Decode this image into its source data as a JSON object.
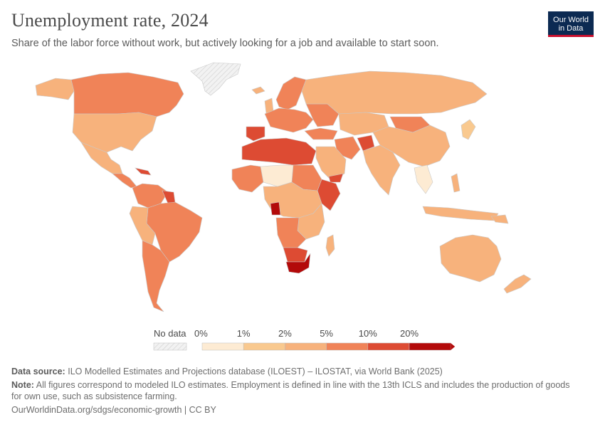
{
  "header": {
    "title": "Unemployment rate, 2024",
    "subtitle": "Share of the labor force without work, but actively looking for a job and available to start soon.",
    "logo_line1": "Our World",
    "logo_line2": "in Data"
  },
  "legend": {
    "no_data_label": "No data",
    "ticks": [
      "0%",
      "1%",
      "2%",
      "5%",
      "10%",
      "20%"
    ],
    "colors": [
      "#fdebd3",
      "#f9c98f",
      "#f7b27c",
      "#f08358",
      "#dd4b33",
      "#b30a0a"
    ],
    "no_data_color": "#e8e8e8"
  },
  "map": {
    "colors": {
      "bin_0_1": "#fdebd3",
      "bin_1_2": "#f9c98f",
      "bin_2_5": "#f7b27c",
      "bin_5_10": "#f08358",
      "bin_10_20": "#dd4b33",
      "bin_20_plus": "#b30a0a",
      "no_data": "#e8e8e8"
    }
  },
  "footer": {
    "source_label": "Data source:",
    "source_text": "ILO Modelled Estimates and Projections database (ILOEST) – ILOSTAT, via World Bank (2025)",
    "note_label": "Note:",
    "note_text": "All figures correspond to modeled ILO estimates. Employment is defined in line with the 13th ICLS and includes the production of goods for own use, such as subsistence farming.",
    "url": "OurWorldinData.org/sdgs/economic-growth | CC BY"
  }
}
